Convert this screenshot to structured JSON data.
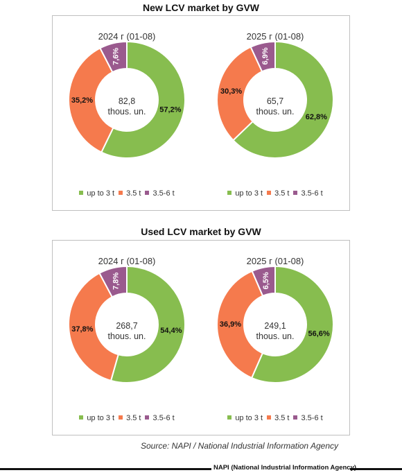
{
  "colors": {
    "up_to_3t": "#87bd4f",
    "t3_5": "#f57a4d",
    "t3_5_6": "#9a5a8e"
  },
  "legend": {
    "up_to_3t": "up to 3 t",
    "t3_5": "3.5 t",
    "t3_5_6": "3.5-6 t"
  },
  "sections": [
    {
      "title": "New LCV market by GVW"
    },
    {
      "title": "Used LCV market by GVW"
    }
  ],
  "chart_data": [
    {
      "type": "pie",
      "title": "2024 г (01-08)",
      "center_value": "82,8",
      "center_unit": "thous. un.",
      "categories": [
        "up to 3 t",
        "3.5 t",
        "3.5-6 t"
      ],
      "values": [
        57.2,
        35.2,
        7.6
      ],
      "labels": [
        "57,2%",
        "35,2%",
        "7,6%"
      ]
    },
    {
      "type": "pie",
      "title": "2025 г (01-08)",
      "center_value": "65,7",
      "center_unit": "thous. un.",
      "categories": [
        "up to 3 t",
        "3.5 t",
        "3.5-6 t"
      ],
      "values": [
        62.8,
        30.3,
        6.9
      ],
      "labels": [
        "62,8%",
        "30,3%",
        "6,9%"
      ]
    },
    {
      "type": "pie",
      "title": "2024 г (01-08)",
      "center_value": "268,7",
      "center_unit": "thous. un.",
      "categories": [
        "up to 3 t",
        "3.5 t",
        "3.5-6 t"
      ],
      "values": [
        54.4,
        37.8,
        7.8
      ],
      "labels": [
        "54,4%",
        "37,8%",
        "7,8%"
      ]
    },
    {
      "type": "pie",
      "title": "2025 г (01-08)",
      "center_value": "249,1",
      "center_unit": "thous. un.",
      "categories": [
        "up to 3 t",
        "3.5 t",
        "3.5-6 t"
      ],
      "values": [
        56.6,
        36.9,
        6.5
      ],
      "labels": [
        "56,6%",
        "36,9%",
        "6,5%"
      ]
    }
  ],
  "source": "Source: NAPI / National Industrial Information Agency",
  "footer": "NAPI (National Industrial Information Agency)"
}
